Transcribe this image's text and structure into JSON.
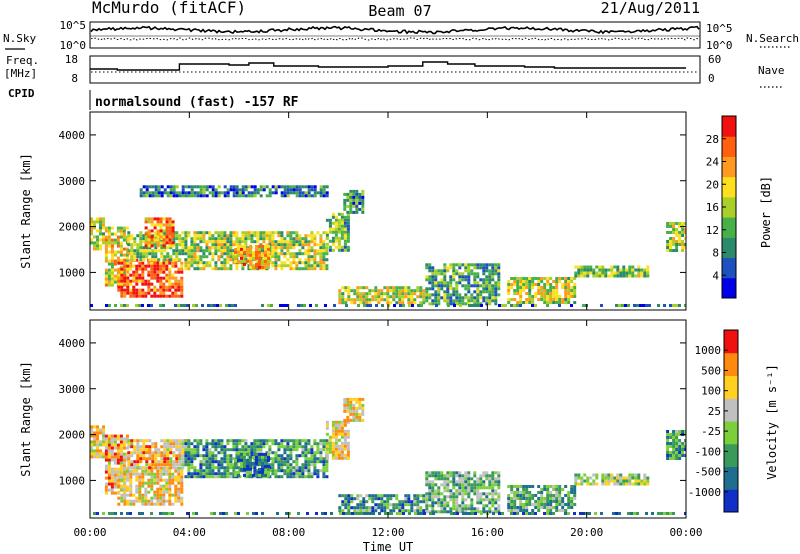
{
  "header": {
    "station": "McMurdo (fitACF)",
    "beam": "Beam 07",
    "date": "21/Aug/2011"
  },
  "status_panels": {
    "nsky_label": "N.Sky",
    "nsearch_label": "N.Search",
    "noise_ticks": [
      "10^5",
      "10^0"
    ],
    "freq_label_line1": "Freq.",
    "freq_label_line2": "[MHz]",
    "freq_ticks": [
      "18",
      "8"
    ],
    "nave_label": "Nave",
    "nave_ticks": [
      "60",
      "0"
    ],
    "cpid_label": "CPID",
    "cpid_text": "normalsound (fast) -157 RF"
  },
  "chart_data": [
    {
      "type": "heatmap",
      "name": "power",
      "ylabel": "Slant Range [km]",
      "y_ticks": [
        "4000",
        "3000",
        "2000",
        "1000"
      ],
      "ylim": [
        180,
        4500
      ],
      "x_ticks": [
        "00:00",
        "04:00",
        "08:00",
        "12:00",
        "16:00",
        "20:00",
        "00:00"
      ],
      "xlim_hours": [
        0,
        24
      ],
      "colorbar_label": "Power [dB]",
      "colorbar_ticks": [
        "28",
        "24",
        "20",
        "16",
        "12",
        "8",
        "4"
      ],
      "colorbar_colors": [
        "#0000e8",
        "#1e50c0",
        "#2c8a6c",
        "#48b048",
        "#a8d028",
        "#ffe020",
        "#ff9a20",
        "#ff6010",
        "#f01010"
      ],
      "regions": [
        {
          "t": [
            0.0,
            0.6
          ],
          "r": [
            1500,
            2200
          ],
          "level": 0.55
        },
        {
          "t": [
            0.6,
            1.5
          ],
          "r": [
            700,
            2000
          ],
          "level": 0.6
        },
        {
          "t": [
            1.1,
            3.7
          ],
          "r": [
            500,
            1300
          ],
          "level": 0.85
        },
        {
          "t": [
            1.5,
            3.8
          ],
          "r": [
            1300,
            1900
          ],
          "level": 0.45
        },
        {
          "t": [
            2.2,
            3.3
          ],
          "r": [
            1600,
            2200
          ],
          "level": 0.75
        },
        {
          "t": [
            3.8,
            9.5
          ],
          "r": [
            1100,
            1900
          ],
          "level": 0.5
        },
        {
          "t": [
            5.8,
            7.2
          ],
          "r": [
            1100,
            1600
          ],
          "level": 0.7
        },
        {
          "t": [
            9.5,
            10.4
          ],
          "r": [
            1500,
            2300
          ],
          "level": 0.4
        },
        {
          "t": [
            10.2,
            11.0
          ],
          "r": [
            2300,
            2800
          ],
          "level": 0.3
        },
        {
          "t": [
            10.0,
            13.5
          ],
          "r": [
            350,
            700
          ],
          "level": 0.55
        },
        {
          "t": [
            13.5,
            16.5
          ],
          "r": [
            300,
            1200
          ],
          "level": 0.35
        },
        {
          "t": [
            16.8,
            19.5
          ],
          "r": [
            350,
            900
          ],
          "level": 0.55
        },
        {
          "t": [
            19.5,
            22.5
          ],
          "r": [
            900,
            1150
          ],
          "level": 0.45
        },
        {
          "t": [
            23.2,
            24.0
          ],
          "r": [
            1500,
            2100
          ],
          "level": 0.5
        },
        {
          "t": [
            2.0,
            9.5
          ],
          "r": [
            2650,
            2900
          ],
          "level": 0.25
        }
      ]
    },
    {
      "type": "heatmap",
      "name": "velocity",
      "ylabel": "Slant Range [km]",
      "y_ticks": [
        "4000",
        "3000",
        "2000",
        "1000"
      ],
      "ylim": [
        180,
        4500
      ],
      "x_ticks": [
        "00:00",
        "04:00",
        "08:00",
        "12:00",
        "16:00",
        "20:00",
        "00:00"
      ],
      "xlim_hours": [
        0,
        24
      ],
      "xlabel": "Time UT",
      "colorbar_label": "Velocity [m s⁻¹]",
      "colorbar_ticks": [
        "1000",
        "500",
        "100",
        "25",
        "-25",
        "-100",
        "-500",
        "-1000"
      ],
      "colorbar_colors": [
        "#1030c8",
        "#1e6e90",
        "#3a9a5a",
        "#7ccf3a",
        "#c0c0c0",
        "#ffd020",
        "#ff8a10",
        "#f01010"
      ],
      "regions": [
        {
          "t": [
            0.0,
            0.6
          ],
          "r": [
            1500,
            2200
          ],
          "level": 0.62
        },
        {
          "t": [
            0.6,
            1.5
          ],
          "r": [
            700,
            2000
          ],
          "level": 0.7
        },
        {
          "t": [
            1.1,
            3.7
          ],
          "r": [
            500,
            1300
          ],
          "level": 0.65
        },
        {
          "t": [
            1.5,
            3.8
          ],
          "r": [
            1300,
            1900
          ],
          "level": 0.7
        },
        {
          "t": [
            3.8,
            9.5
          ],
          "r": [
            1100,
            1900
          ],
          "level": 0.3
        },
        {
          "t": [
            5.8,
            7.2
          ],
          "r": [
            1100,
            1600
          ],
          "level": 0.25
        },
        {
          "t": [
            9.5,
            10.4
          ],
          "r": [
            1500,
            2300
          ],
          "level": 0.6
        },
        {
          "t": [
            10.2,
            11.0
          ],
          "r": [
            2300,
            2800
          ],
          "level": 0.65
        },
        {
          "t": [
            10.0,
            13.5
          ],
          "r": [
            350,
            700
          ],
          "level": 0.3
        },
        {
          "t": [
            13.5,
            16.5
          ],
          "r": [
            300,
            1200
          ],
          "level": 0.4
        },
        {
          "t": [
            16.8,
            19.5
          ],
          "r": [
            350,
            900
          ],
          "level": 0.35
        },
        {
          "t": [
            19.5,
            22.5
          ],
          "r": [
            900,
            1150
          ],
          "level": 0.5
        },
        {
          "t": [
            23.2,
            24.0
          ],
          "r": [
            1500,
            2100
          ],
          "level": 0.3
        }
      ]
    }
  ]
}
